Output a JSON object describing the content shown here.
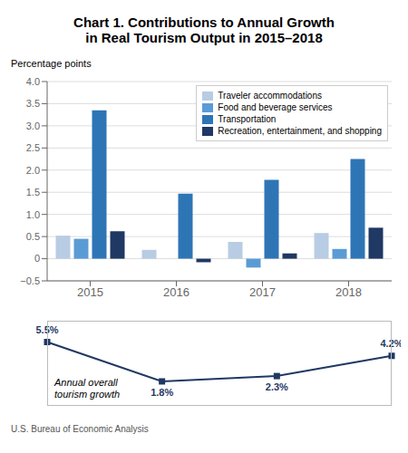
{
  "chart_data": [
    {
      "type": "bar",
      "title": "Chart 1. Contributions to Annual Growth\nin Real Tourism Output in 2015–2018",
      "ylabel": "Percentage points",
      "categories": [
        "2015",
        "2016",
        "2017",
        "2018"
      ],
      "series": [
        {
          "name": "Traveler accommodations",
          "color": "#b8cce4",
          "values": [
            0.52,
            0.2,
            0.38,
            0.58
          ]
        },
        {
          "name": "Food and beverage services",
          "color": "#5b9bd5",
          "values": [
            0.45,
            0.0,
            -0.2,
            0.22
          ]
        },
        {
          "name": "Transportation",
          "color": "#2e75b6",
          "values": [
            3.35,
            1.47,
            1.78,
            2.25
          ]
        },
        {
          "name": "Recreation, entertainment, and shopping",
          "color": "#1f3864",
          "values": [
            0.62,
            -0.08,
            0.12,
            0.7
          ]
        }
      ],
      "ylim": [
        -0.5,
        4.0
      ],
      "yticks": [
        {
          "value": -0.5,
          "label": "−0.5"
        },
        0,
        0.5,
        {
          "value": 1.0,
          "label": "1.0"
        },
        1.5,
        {
          "value": 2.0,
          "label": "2.0"
        },
        2.5,
        {
          "value": 3.0,
          "label": "3.0"
        },
        3.5,
        {
          "value": 4.0,
          "label": "4.0"
        }
      ],
      "grid": true,
      "legend": "upper right",
      "annotations": [
        "U.S. Bureau of Economic Analysis"
      ]
    },
    {
      "type": "line",
      "categories": [
        "2015",
        "2016",
        "2017",
        "2018"
      ],
      "values": [
        5.5,
        1.8,
        2.3,
        4.2
      ],
      "value_labels": [
        "5.5%",
        "1.8%",
        "2.3%",
        "4.2%"
      ],
      "color": "#1f3864",
      "marker": "square",
      "data_labels": true,
      "ylim": [
        -0.5,
        7.5
      ],
      "tick_labels": false,
      "annotations": [
        "Annual overall\ntourism growth"
      ]
    }
  ]
}
